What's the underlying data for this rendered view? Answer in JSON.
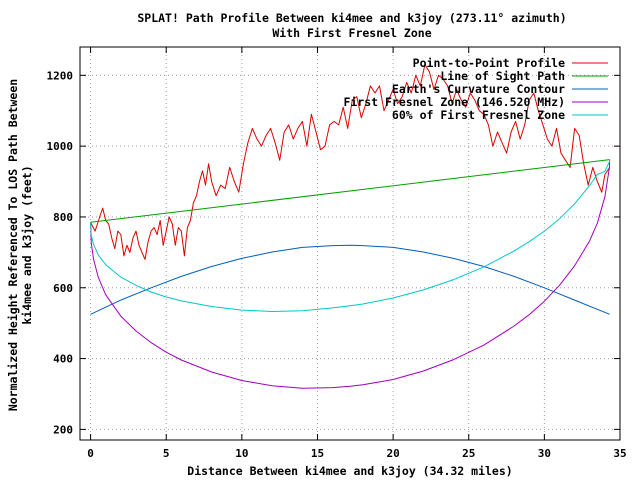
{
  "chart_data": {
    "type": "line",
    "title": "SPLAT! Path Profile Between ki4mee and k3joy (273.11° azimuth)",
    "subtitle": "With First Fresnel Zone",
    "xlabel": "Distance Between ki4mee and k3joy (34.32 miles)",
    "ylabel": "Normalized Height Referenced To LOS Path Between",
    "ylabel2": "ki4mee and k3joy (feet)",
    "xlim": [
      -0.7,
      35
    ],
    "ylim": [
      170,
      1280
    ],
    "xticks": [
      0,
      5,
      10,
      15,
      20,
      25,
      30,
      35
    ],
    "yticks": [
      200,
      400,
      600,
      800,
      1000,
      1200
    ],
    "grid": true,
    "legend_position": "top-right",
    "series": [
      {
        "name": "Point-to-Point Profile",
        "color": "#dd0000",
        "x": [
          0,
          0.3,
          0.6,
          0.8,
          1.0,
          1.2,
          1.4,
          1.6,
          1.8,
          2.0,
          2.2,
          2.4,
          2.6,
          2.8,
          3.0,
          3.2,
          3.4,
          3.6,
          3.8,
          4.0,
          4.2,
          4.4,
          4.6,
          4.8,
          5.0,
          5.2,
          5.4,
          5.6,
          5.8,
          6.0,
          6.2,
          6.4,
          6.6,
          6.8,
          7.0,
          7.2,
          7.4,
          7.6,
          7.8,
          8.0,
          8.3,
          8.6,
          8.9,
          9.2,
          9.5,
          9.8,
          10.1,
          10.4,
          10.7,
          11.0,
          11.3,
          11.6,
          11.9,
          12.2,
          12.5,
          12.8,
          13.1,
          13.4,
          13.7,
          14.0,
          14.3,
          14.6,
          14.9,
          15.2,
          15.5,
          15.8,
          16.1,
          16.4,
          16.7,
          17.0,
          17.3,
          17.6,
          17.9,
          18.2,
          18.5,
          18.8,
          19.1,
          19.4,
          19.7,
          20.0,
          20.3,
          20.6,
          20.9,
          21.2,
          21.5,
          21.8,
          22.1,
          22.4,
          22.7,
          23.0,
          23.3,
          23.6,
          23.9,
          24.2,
          24.5,
          24.8,
          25.1,
          25.4,
          25.7,
          26.0,
          26.3,
          26.6,
          26.9,
          27.2,
          27.5,
          27.8,
          28.1,
          28.4,
          28.7,
          29.0,
          29.3,
          29.6,
          29.9,
          30.2,
          30.5,
          30.8,
          31.1,
          31.4,
          31.7,
          32.0,
          32.3,
          32.6,
          32.9,
          33.2,
          33.5,
          33.8,
          34.0,
          34.32
        ],
        "y": [
          785,
          760,
          800,
          825,
          790,
          780,
          740,
          710,
          760,
          750,
          690,
          720,
          700,
          740,
          760,
          720,
          700,
          680,
          730,
          760,
          770,
          750,
          790,
          720,
          760,
          800,
          780,
          720,
          770,
          760,
          690,
          770,
          790,
          840,
          860,
          900,
          930,
          890,
          950,
          900,
          860,
          890,
          880,
          940,
          900,
          870,
          950,
          1010,
          1050,
          1020,
          1000,
          1030,
          1050,
          1010,
          960,
          1040,
          1060,
          1020,
          1050,
          1070,
          1000,
          1090,
          1040,
          990,
          1000,
          1060,
          1070,
          1060,
          1110,
          1050,
          1130,
          1140,
          1080,
          1120,
          1170,
          1150,
          1170,
          1100,
          1130,
          1160,
          1120,
          1140,
          1180,
          1150,
          1200,
          1170,
          1230,
          1210,
          1160,
          1200,
          1190,
          1170,
          1120,
          1160,
          1130,
          1110,
          1150,
          1130,
          1100,
          1090,
          1060,
          1000,
          1040,
          1010,
          980,
          1040,
          1070,
          1020,
          1060,
          1130,
          1150,
          1100,
          1060,
          1020,
          1000,
          1050,
          980,
          960,
          940,
          1050,
          1030,
          950,
          890,
          940,
          900,
          870,
          920,
          940
        ]
      },
      {
        "name": "Line of Sight Path",
        "color": "#00a000",
        "x": [
          0,
          34.32
        ],
        "y": [
          785,
          962
        ]
      },
      {
        "name": "Earth's Curvature Contour",
        "color": "#0060c0",
        "x": [
          0,
          2,
          4,
          6,
          8,
          10,
          12,
          14,
          16,
          17.16,
          18,
          20,
          22,
          24,
          26,
          28,
          30,
          32,
          34.32
        ],
        "y": [
          525,
          565,
          600,
          632,
          660,
          683,
          701,
          714,
          719,
          720,
          719,
          714,
          701,
          683,
          660,
          632,
          600,
          565,
          525
        ]
      },
      {
        "name": "First Fresnel Zone (146.520 MHz)",
        "color": "#a000c0",
        "x": [
          0,
          0.05,
          0.2,
          0.5,
          1,
          2,
          3,
          4,
          5,
          6,
          8,
          10,
          12,
          14,
          16,
          17.16,
          18,
          20,
          22,
          24,
          26,
          28,
          29,
          30,
          31,
          32,
          33,
          33.5,
          34,
          34.3,
          34.32
        ],
        "y": [
          785,
          725,
          680,
          630,
          580,
          520,
          478,
          445,
          418,
          396,
          362,
          338,
          323,
          316,
          318,
          322,
          326,
          341,
          365,
          397,
          438,
          492,
          524,
          562,
          607,
          662,
          733,
          782,
          857,
          940,
          962
        ]
      },
      {
        "name": "60% of First Fresnel Zone",
        "color": "#00c8c8",
        "x": [
          0,
          0.05,
          0.2,
          0.5,
          1,
          2,
          3,
          4,
          5,
          6,
          8,
          10,
          12,
          14,
          16,
          17.16,
          18,
          20,
          22,
          24,
          26,
          28,
          29,
          30,
          31,
          32,
          33,
          33.5,
          34,
          34.3,
          34.32
        ],
        "y": [
          785,
          748,
          722,
          693,
          665,
          630,
          607,
          588,
          574,
          563,
          547,
          537,
          533,
          535,
          543,
          549,
          554,
          571,
          594,
          623,
          659,
          704,
          730,
          760,
          795,
          837,
          889,
          920,
          929,
          956,
          962
        ]
      }
    ]
  }
}
